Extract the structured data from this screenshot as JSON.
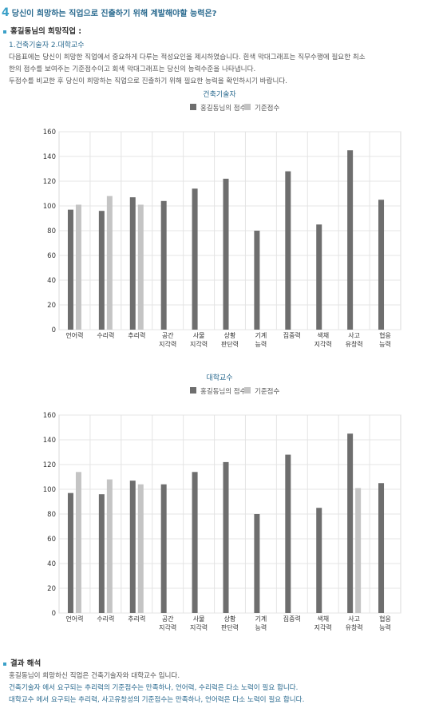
{
  "header": {
    "number": "4",
    "title": "당신이 희망하는 직업으로 진출하기 위해 계발해야할 능력은?"
  },
  "section1": {
    "heading": "홍길동님의 희망직업 :",
    "jobs": "1.건축기술자 2.대학교수",
    "desc_lines": [
      "다음표에는 당신이 희망한 직업에서 중요하게 다루는 적성요인을 제시하였습니다. 흰색 막대그래프는 직무수행에 필요한 최소",
      "한의 점수를 보여주는 기준점수이고 회색 막대그래프는 당신의 능력수준을 나타냅니다.",
      "두점수를 비교한 후 당신이 희망하는 직업으로 진출하기 위해 필요한 능력을 확인하시기 바랍니다."
    ]
  },
  "colors": {
    "user": "#6e6e6e",
    "standard": "#c4c4c4",
    "title": "#2a6a8f",
    "accent": "#3aa0c8"
  },
  "chart_data": [
    {
      "type": "bar",
      "title": "건축기술자",
      "categories": [
        "언어력",
        "수리력",
        "추리력",
        "공간\n지각력",
        "사물\n지각력",
        "상황\n판단력",
        "기계\n능력",
        "집중력",
        "색채\n지각력",
        "사고\n유창력",
        "협응\n능력"
      ],
      "series": [
        {
          "name": "홍길동님의 점수",
          "values": [
            97,
            96,
            107,
            104,
            114,
            122,
            80,
            128,
            85,
            145,
            105
          ]
        },
        {
          "name": "기준점수",
          "values": [
            101,
            108,
            101,
            null,
            null,
            null,
            null,
            null,
            null,
            null,
            null
          ]
        }
      ],
      "ylim": [
        0,
        160
      ],
      "yticks": [
        0,
        20,
        40,
        60,
        80,
        100,
        120,
        140,
        160
      ],
      "grid": true,
      "legend": "top-center"
    },
    {
      "type": "bar",
      "title": "대학교수",
      "categories": [
        "언어력",
        "수리력",
        "추리력",
        "공간\n지각력",
        "사물\n지각력",
        "상황\n판단력",
        "기계\n능력",
        "집중력",
        "색채\n지각력",
        "사고\n유창력",
        "협응\n능력"
      ],
      "series": [
        {
          "name": "홍길동님의 점수",
          "values": [
            97,
            96,
            107,
            104,
            114,
            122,
            80,
            128,
            85,
            145,
            105
          ]
        },
        {
          "name": "기준점수",
          "values": [
            114,
            108,
            104,
            null,
            null,
            null,
            null,
            null,
            null,
            101,
            null
          ]
        }
      ],
      "ylim": [
        0,
        160
      ],
      "yticks": [
        0,
        20,
        40,
        60,
        80,
        100,
        120,
        140,
        160
      ],
      "grid": true,
      "legend": "top-center"
    }
  ],
  "result": {
    "heading": "결과 해석",
    "line1": "홍길동님이 희망하신 직업은 건축기술자와 대학교수 입니다.",
    "line2": "건축기술자 에서 요구되는 추리력의 기준점수는 만족하나, 언어력, 수리력은 다소 노력이 필요 합니다.",
    "line3": "대학교수 에서 요구되는 추리력, 사고유창성의 기준점수는 만족하나, 언어력은 다소 노력이 필요 합니다."
  }
}
